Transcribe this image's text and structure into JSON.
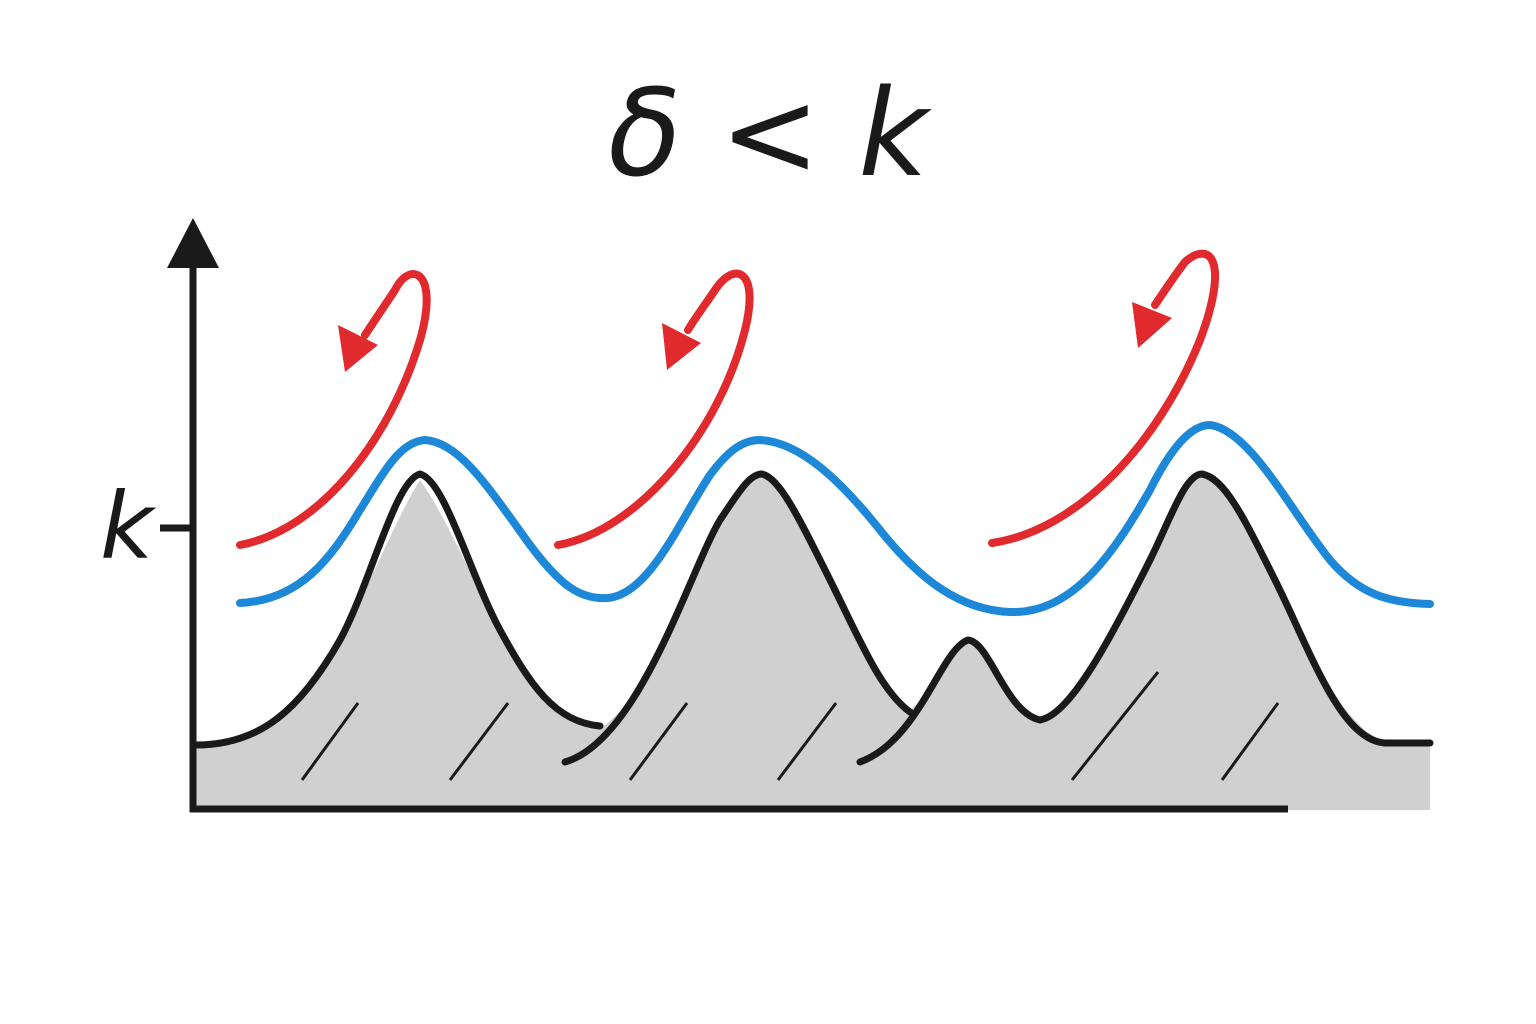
{
  "title": "δ < k",
  "y_axis": {
    "tick_label": "k"
  },
  "colors": {
    "surface_fill": "#d0d0d0",
    "surface_line": "#1a1a1a",
    "boundary_line": "#1e88d8",
    "flow_arrow": "#e02a2e",
    "axis": "#1a1a1a"
  },
  "elements": {
    "surface": "rough-surface-profile",
    "boundary": "boundary-layer-curve",
    "arrows": [
      "eddy-arrow",
      "eddy-arrow",
      "eddy-arrow"
    ]
  }
}
